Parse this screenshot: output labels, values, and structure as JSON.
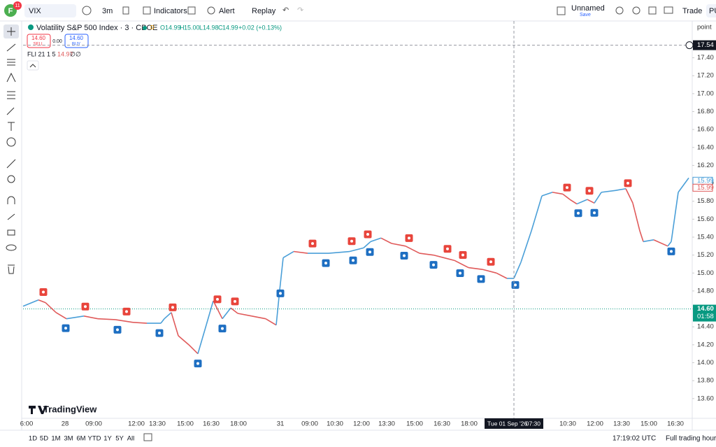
{
  "toolbar": {
    "avatar": "F",
    "badge": "11",
    "symbol": "VIX",
    "interval": "3m",
    "indicators": "Indicators",
    "alert": "Alert",
    "replay": "Replay",
    "layout_name": "Unnamed",
    "layout_status": "Save",
    "trade": "Trade",
    "user": "PU"
  },
  "legend": {
    "title": "Volatility S&P 500 Index · 3 · CBOE",
    "session": "D",
    "open_label": "O",
    "open": "14.99",
    "high_label": "H",
    "high": "15.00",
    "low_label": "L",
    "low": "14.98",
    "close_label": "C",
    "close": "14.99",
    "change": "+0.02 (+0.13%)"
  },
  "trade_panel": {
    "sell_price": "14.60",
    "sell": "SELL",
    "spread": "0.00",
    "buy_price": "14.60",
    "buy": "BUY"
  },
  "indicator_legend": {
    "value": "14.97",
    "extra1": "∅",
    "extra2": "∅"
  },
  "logo": "TradingView",
  "chart_data": {
    "type": "line",
    "axis_unit": "point",
    "x": [
      0,
      22,
      32,
      47,
      62,
      87,
      107,
      132,
      157,
      177,
      197,
      202,
      212,
      222,
      237,
      250,
      262,
      272,
      285,
      297,
      307,
      327,
      347,
      362,
      367,
      372,
      387,
      407,
      437,
      467,
      487,
      497,
      512,
      527,
      547,
      567,
      587,
      617,
      637,
      657,
      677,
      692,
      702,
      712,
      727,
      742,
      757,
      772,
      782,
      792,
      807,
      817,
      827,
      847,
      862,
      872,
      882,
      887,
      902,
      922,
      927,
      937,
      952
    ],
    "series": [
      {
        "name": "FLI 21 1 5",
        "color": "#4a9fd8",
        "down_color": "#e05a5a",
        "values": [
          14.63,
          14.7,
          14.67,
          14.56,
          14.49,
          14.52,
          14.49,
          14.48,
          14.45,
          14.44,
          14.44,
          14.49,
          14.56,
          14.3,
          14.2,
          14.1,
          14.42,
          14.69,
          14.49,
          14.61,
          14.55,
          14.52,
          14.49,
          14.42,
          14.81,
          15.17,
          15.24,
          15.22,
          15.22,
          15.24,
          15.28,
          15.35,
          15.39,
          15.33,
          15.3,
          15.22,
          15.2,
          15.14,
          15.06,
          15.04,
          15.0,
          14.94,
          14.94,
          15.12,
          15.47,
          15.86,
          15.9,
          15.88,
          15.82,
          15.77,
          15.82,
          15.78,
          15.9,
          15.92,
          15.94,
          15.78,
          15.47,
          15.35,
          15.37,
          15.3,
          15.35,
          15.9,
          16.06
        ]
      }
    ],
    "xlim": [
      0,
      957
    ],
    "ylim": [
      13.38,
      17.81
    ],
    "grid": false,
    "yticks": [
      {
        "value": 13.6,
        "label": "13.60"
      },
      {
        "value": 13.8,
        "label": "13.80"
      },
      {
        "value": 14.0,
        "label": "14.00"
      },
      {
        "value": 14.2,
        "label": "14.20"
      },
      {
        "value": 14.4,
        "label": "14.40"
      },
      {
        "value": 14.6,
        "label": "14.60"
      },
      {
        "value": 14.8,
        "label": "14.80"
      },
      {
        "value": 15.0,
        "label": "15.00"
      },
      {
        "value": 15.2,
        "label": "15.20"
      },
      {
        "value": 15.4,
        "label": "15.40"
      },
      {
        "value": 15.6,
        "label": "15.60"
      },
      {
        "value": 15.8,
        "label": "15.80"
      },
      {
        "value": 16.0,
        "label": "16.00"
      },
      {
        "value": 16.2,
        "label": "16.20"
      },
      {
        "value": 16.4,
        "label": "16.40"
      },
      {
        "value": 16.6,
        "label": "16.60"
      },
      {
        "value": 16.8,
        "label": "16.80"
      },
      {
        "value": 17.0,
        "label": "17.00"
      },
      {
        "value": 17.2,
        "label": "17.20"
      },
      {
        "value": 17.4,
        "label": "17.40"
      }
    ],
    "sell_signals_x": [
      29,
      89,
      148,
      214,
      278,
      303,
      414,
      470,
      493,
      552,
      607,
      629,
      669,
      778,
      810,
      865
    ],
    "buy_signals_x": [
      61,
      135,
      195,
      250,
      285,
      368,
      433,
      472,
      496,
      545,
      587,
      625,
      655,
      704,
      794,
      817,
      927
    ],
    "time_labels": [
      "6:00",
      "28",
      "09:00",
      "12:00",
      "13:30",
      "15:00",
      "16:30",
      "18:00",
      "31",
      "09:00",
      "10:30",
      "12:00",
      "13:30",
      "15:00",
      "16:30",
      "18:00",
      "10:30",
      "12:00",
      "13:30",
      "15:00",
      "16:30"
    ],
    "crosshair": {
      "x": 702,
      "date": "Tue 01 Sep '26",
      "time": "07:30",
      "price": {
        "value": 17.54,
        "label": "17.54"
      }
    },
    "last_price": {
      "value": 14.6,
      "label": "14.60"
    },
    "countdown": "01:58",
    "price_tags": [
      {
        "value": 15.99,
        "label": "15.99",
        "color": "#4a9fd8"
      },
      {
        "value": 15.99,
        "label": "15.99",
        "color": "#e05a5a"
      }
    ]
  },
  "footer": {
    "ranges": [
      "1D",
      "5D",
      "1M",
      "3M",
      "6M",
      "YTD",
      "1Y",
      "5Y",
      "All"
    ],
    "clock": "17:19:02 UTC",
    "session": "Full trading hours"
  }
}
